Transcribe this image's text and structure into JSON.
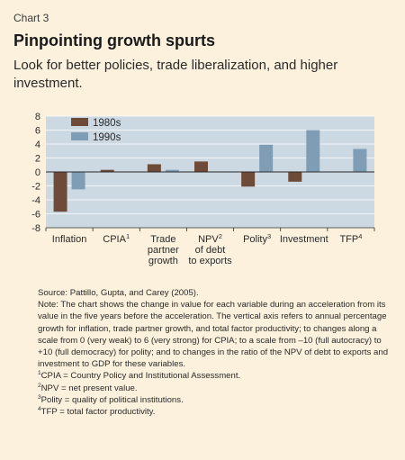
{
  "header": {
    "chart_number": "Chart 3",
    "title": "Pinpointing growth spurts",
    "subtitle": "Look for better policies, trade liberalization, and higher investment."
  },
  "chart_data": {
    "type": "bar",
    "categories": [
      {
        "main": "Inflation",
        "sup": "",
        "lines": []
      },
      {
        "main": "CPIA",
        "sup": "1",
        "lines": []
      },
      {
        "main": "",
        "sup": "",
        "lines": [
          "Trade",
          "partner",
          "growth"
        ]
      },
      {
        "main": "NPV",
        "sup": "2",
        "lines": [
          "of debt",
          "to exports"
        ]
      },
      {
        "main": "Polity",
        "sup": "3",
        "lines": []
      },
      {
        "main": "Investment",
        "sup": "",
        "lines": []
      },
      {
        "main": "TFP",
        "sup": "4",
        "lines": []
      }
    ],
    "series": [
      {
        "name": "1980s",
        "values": [
          -5.7,
          0.3,
          1.1,
          1.5,
          -2.1,
          -1.4,
          0.0
        ],
        "color": "#6e4a38"
      },
      {
        "name": "1990s",
        "values": [
          -2.5,
          0.0,
          0.3,
          0.0,
          3.9,
          6.0,
          3.3
        ],
        "color": "#7f9db5"
      }
    ],
    "yticks": [
      "8",
      "6",
      "4",
      "2",
      "0",
      "-2",
      "-4",
      "-6",
      "-8"
    ],
    "ylim": [
      -8,
      8
    ],
    "legend_position": "top-left",
    "plot_background": "#ccd8e2",
    "grid": true
  },
  "notes": {
    "source": "Source: Pattillo, Gupta, and Carey (2005).",
    "note": "Note: The chart shows the change in value for each variable during an acceleration from its value in the five years before the acceleration. The vertical axis refers to annual percentage growth for inflation, trade partner growth, and total factor productivity; to changes along a scale from 0 (very weak) to 6 (very strong) for CPIA; to a scale from –10 (full autocracy) to +10 (full democracy) for polity; and to changes in the ratio of the NPV of debt to exports and investment to GDP for these variables.",
    "footnotes": [
      {
        "num": "1",
        "text": "CPIA = Country Policy and Institutional Assessment."
      },
      {
        "num": "2",
        "text": "NPV = net present value."
      },
      {
        "num": "3",
        "text": "Polity  = quality of political institutions."
      },
      {
        "num": "4",
        "text": "TFP = total factor productivity."
      }
    ]
  }
}
